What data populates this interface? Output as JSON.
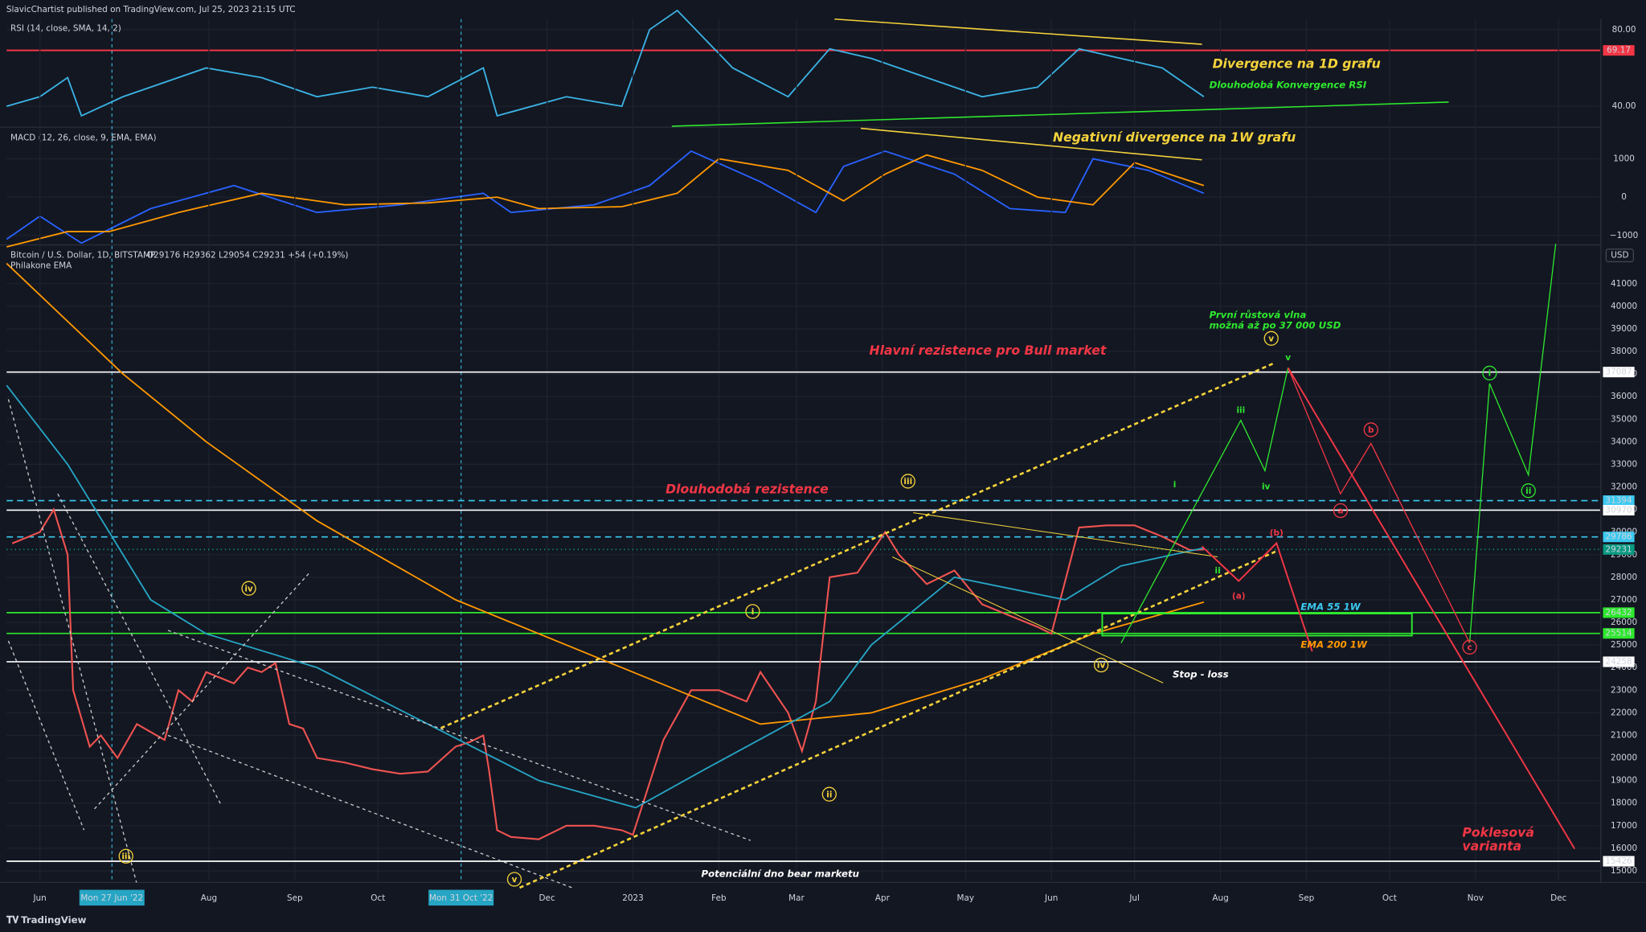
{
  "header": {
    "publisher": "SlavicChartist published on TradingView.com, Jul 25, 2023 21:15 UTC"
  },
  "footer": {
    "brand": "TradingView"
  },
  "chart_data": [
    {
      "type": "line",
      "title": "RSI (14, close, SMA, 14, 2)",
      "xlim": [
        -12,
        563
      ],
      "ylim": [
        29.6,
        85.5
      ],
      "yticks": [
        {
          "value": 80,
          "label": "80.00"
        },
        {
          "value": 40,
          "label": "40.00"
        }
      ],
      "levels": [
        {
          "value": 69.17,
          "color": "#f23645"
        }
      ],
      "series": [
        {
          "color": "#3bb3e4",
          "x": [
            -12,
            0,
            10,
            15,
            30,
            60,
            80,
            100,
            120,
            140,
            160,
            165,
            190,
            210,
            220,
            230,
            250,
            270,
            285,
            300,
            320,
            340,
            360,
            375,
            390,
            405,
            420
          ],
          "values": [
            40,
            45,
            55,
            35,
            45,
            60,
            55,
            45,
            50,
            45,
            60,
            35,
            45,
            40,
            80,
            90,
            60,
            45,
            70,
            65,
            55,
            45,
            50,
            70,
            65,
            60,
            45
          ]
        }
      ],
      "annotations": [
        {
          "text": [
            "Divergence na 1D grafu"
          ],
          "color": "#f5d33b"
        },
        {
          "text": [
            "Dlouhodobá Konvergence RSI"
          ],
          "color": "#2ee82e"
        },
        {
          "text": [
            "Negativní divergence na 1W grafu"
          ],
          "color": "#f5d33b"
        }
      ]
    },
    {
      "type": "line",
      "title": "MACD (12, 26, close, 9, EMA, EMA)",
      "xlim": [
        -12,
        563
      ],
      "ylim": [
        -1220,
        1795
      ],
      "yticks": [
        1000,
        0,
        {
          "value": -1000,
          "label": "−1000"
        }
      ],
      "series": [
        {
          "color": "#2962ff",
          "x": [
            -12,
            0,
            15,
            40,
            70,
            100,
            130,
            160,
            170,
            200,
            220,
            235,
            260,
            280,
            290,
            305,
            330,
            350,
            370,
            380,
            400,
            420
          ],
          "values": [
            -1100,
            -500,
            -1200,
            -300,
            300,
            -400,
            -200,
            100,
            -400,
            -200,
            300,
            1200,
            400,
            -400,
            800,
            1200,
            600,
            -300,
            -400,
            1000,
            700,
            100
          ]
        },
        {
          "color": "#ff9800",
          "x": [
            -12,
            10,
            25,
            50,
            80,
            110,
            140,
            165,
            180,
            210,
            230,
            245,
            270,
            290,
            305,
            320,
            340,
            360,
            380,
            395,
            420
          ],
          "values": [
            -1300,
            -900,
            -900,
            -400,
            100,
            -200,
            -150,
            0,
            -300,
            -250,
            100,
            1000,
            700,
            -100,
            600,
            1100,
            700,
            0,
            -200,
            900,
            300
          ]
        }
      ]
    },
    {
      "type": "line",
      "title": "Bitcoin / U.S. Dollar, 1D, BITSTAMP",
      "ohlc": "O29176 H29362 L29054 C29231 +54 (+0.19%)",
      "indicator": "Philakone EMA",
      "currency": "USD",
      "xlim": [
        -12,
        563
      ],
      "ylim": [
        14580,
        42670
      ],
      "xticks": [
        {
          "value": 0,
          "label": "Jun"
        },
        {
          "value": 61,
          "label": "Aug"
        },
        {
          "value": 92,
          "label": "Sep"
        },
        {
          "value": 122,
          "label": "Oct"
        },
        {
          "value": 183,
          "label": "Dec"
        },
        {
          "value": 214,
          "label": "2023"
        },
        {
          "value": 245,
          "label": "Feb"
        },
        {
          "value": 273,
          "label": "Mar"
        },
        {
          "value": 304,
          "label": "Apr"
        },
        {
          "value": 334,
          "label": "May"
        },
        {
          "value": 365,
          "label": "Jun"
        },
        {
          "value": 395,
          "label": "Jul"
        },
        {
          "value": 426,
          "label": "Aug"
        },
        {
          "value": 457,
          "label": "Sep"
        },
        {
          "value": 487,
          "label": "Oct"
        },
        {
          "value": 518,
          "label": "Nov"
        },
        {
          "value": 548,
          "label": "Dec"
        }
      ],
      "crosshair_dates": [
        {
          "value": 26,
          "label": "Mon 27 Jun '22"
        },
        {
          "value": 152,
          "label": "Mon 31 Oct '22"
        }
      ],
      "yticks": [
        15000,
        16000,
        17000,
        18000,
        19000,
        20000,
        21000,
        22000,
        23000,
        24000,
        25000,
        26000,
        27000,
        28000,
        29000,
        30000,
        31000,
        32000,
        33000,
        34000,
        35000,
        36000,
        37000,
        38000,
        39000,
        40000,
        41000
      ],
      "levels": [
        {
          "value": 37087,
          "color": "#ffffff",
          "style": "solid"
        },
        {
          "value": 31394,
          "color": "#3bc9f0",
          "style": "dashed"
        },
        {
          "value": 30970,
          "color": "#ffffff",
          "style": "solid"
        },
        {
          "value": 29786,
          "color": "#3bc9f0",
          "style": "dashed"
        },
        {
          "value": 29231,
          "color": "#089981",
          "style": "dotted"
        },
        {
          "value": 26432,
          "color": "#2ee82e",
          "style": "solid"
        },
        {
          "value": 25514,
          "color": "#2ee82e",
          "style": "solid"
        },
        {
          "value": 24258,
          "color": "#ffffff",
          "style": "solid"
        },
        {
          "value": 15426,
          "color": "#ffffff",
          "style": "solid"
        }
      ],
      "series": [
        {
          "color": "#ef5350",
          "x": [
            -10,
            0,
            5,
            10,
            12,
            18,
            22,
            28,
            35,
            45,
            50,
            55,
            60,
            70,
            75,
            80,
            85,
            90,
            95,
            100,
            110,
            120,
            130,
            140,
            150,
            155,
            160,
            162,
            165,
            170,
            180,
            190,
            200,
            210,
            214,
            225,
            235,
            245,
            255,
            260,
            270,
            275,
            280,
            285,
            295,
            305,
            310,
            320,
            330,
            340,
            350,
            360,
            365,
            375,
            385,
            395,
            405,
            415,
            420
          ],
          "values": [
            29500,
            30000,
            31000,
            29000,
            23000,
            20500,
            21000,
            20000,
            21500,
            20800,
            23000,
            22500,
            23800,
            23300,
            24000,
            23800,
            24200,
            21500,
            21300,
            20000,
            19800,
            19500,
            19300,
            19400,
            20500,
            20700,
            21000,
            19500,
            16800,
            16500,
            16400,
            17000,
            17000,
            16800,
            16600,
            20800,
            23000,
            23000,
            22500,
            23800,
            22000,
            20300,
            22500,
            28000,
            28200,
            30000,
            29000,
            27700,
            28300,
            26800,
            26300,
            25800,
            25500,
            30200,
            30300,
            30300,
            29800,
            29200,
            29231
          ]
        },
        {
          "color": "#ff9800",
          "x": [
            -12,
            30,
            60,
            100,
            150,
            200,
            240,
            260,
            300,
            340,
            380,
            420
          ],
          "values": [
            41900,
            37000,
            34000,
            30500,
            27000,
            24500,
            22500,
            21500,
            22000,
            23500,
            25500,
            26900
          ]
        },
        {
          "color": "#26a5c4",
          "x": [
            -12,
            10,
            40,
            60,
            100,
            140,
            180,
            215,
            240,
            270,
            285,
            300,
            330,
            350,
            370,
            390,
            420
          ],
          "values": [
            36500,
            33000,
            27000,
            25500,
            24000,
            21500,
            19000,
            17800,
            19500,
            21500,
            22500,
            25000,
            28000,
            27500,
            27000,
            28500,
            29300
          ]
        }
      ],
      "annotations": [
        {
          "text": [
            "Hlavní rezistence pro Bull market"
          ],
          "color": "#f23645"
        },
        {
          "text": [
            "Dlouhodobá rezistence"
          ],
          "color": "#f23645"
        },
        {
          "text": [
            "První růstová vlna",
            "možná až po 37 000 USD"
          ],
          "color": "#2ee82e"
        },
        {
          "text": [
            "EMA 55 1W"
          ],
          "color": "#3bc9f0"
        },
        {
          "text": [
            "EMA 200 1W"
          ],
          "color": "#ff9800"
        },
        {
          "text": [
            "Stop - loss"
          ],
          "color": "#ffffff"
        },
        {
          "text": [
            "Potenciální dno bear marketu"
          ],
          "color": "#ffffff"
        },
        {
          "text": [
            "Poklesová",
            "varianta"
          ],
          "color": "#f23645"
        }
      ],
      "waves": [
        {
          "text": "iv",
          "color": "#f5d33b",
          "circled": true
        },
        {
          "text": "iii",
          "color": "#f5d33b",
          "circled": true
        },
        {
          "text": "i",
          "color": "#f5d33b",
          "circled": true
        },
        {
          "text": "ii",
          "color": "#f5d33b",
          "circled": true
        },
        {
          "text": "iii",
          "color": "#f5d33b",
          "circled": true
        },
        {
          "text": "iv",
          "color": "#f5d33b",
          "circled": true
        },
        {
          "text": "v",
          "color": "#f5d33b",
          "circled": true
        },
        {
          "text": "v",
          "color": "#f5d33b",
          "circled": true
        },
        {
          "text": "iii",
          "color": "#2ee82e",
          "circled": false
        },
        {
          "text": "iv",
          "color": "#2ee82e",
          "circled": false
        },
        {
          "text": "v",
          "color": "#2ee82e",
          "circled": false
        },
        {
          "text": "i",
          "color": "#2ee82e",
          "circled": false
        },
        {
          "text": "ii",
          "color": "#2ee82e",
          "circled": false
        },
        {
          "text": "i",
          "color": "#2ee82e",
          "circled": true
        },
        {
          "text": "ii",
          "color": "#2ee82e",
          "circled": true
        },
        {
          "text": "(a)",
          "color": "#f23645",
          "circled": false
        },
        {
          "text": "(b)",
          "color": "#f23645",
          "circled": false
        },
        {
          "text": "b",
          "color": "#f23645",
          "circled": true
        },
        {
          "text": "a",
          "color": "#f23645",
          "circled": true
        },
        {
          "text": "c",
          "color": "#f23645",
          "circled": true
        }
      ]
    }
  ]
}
